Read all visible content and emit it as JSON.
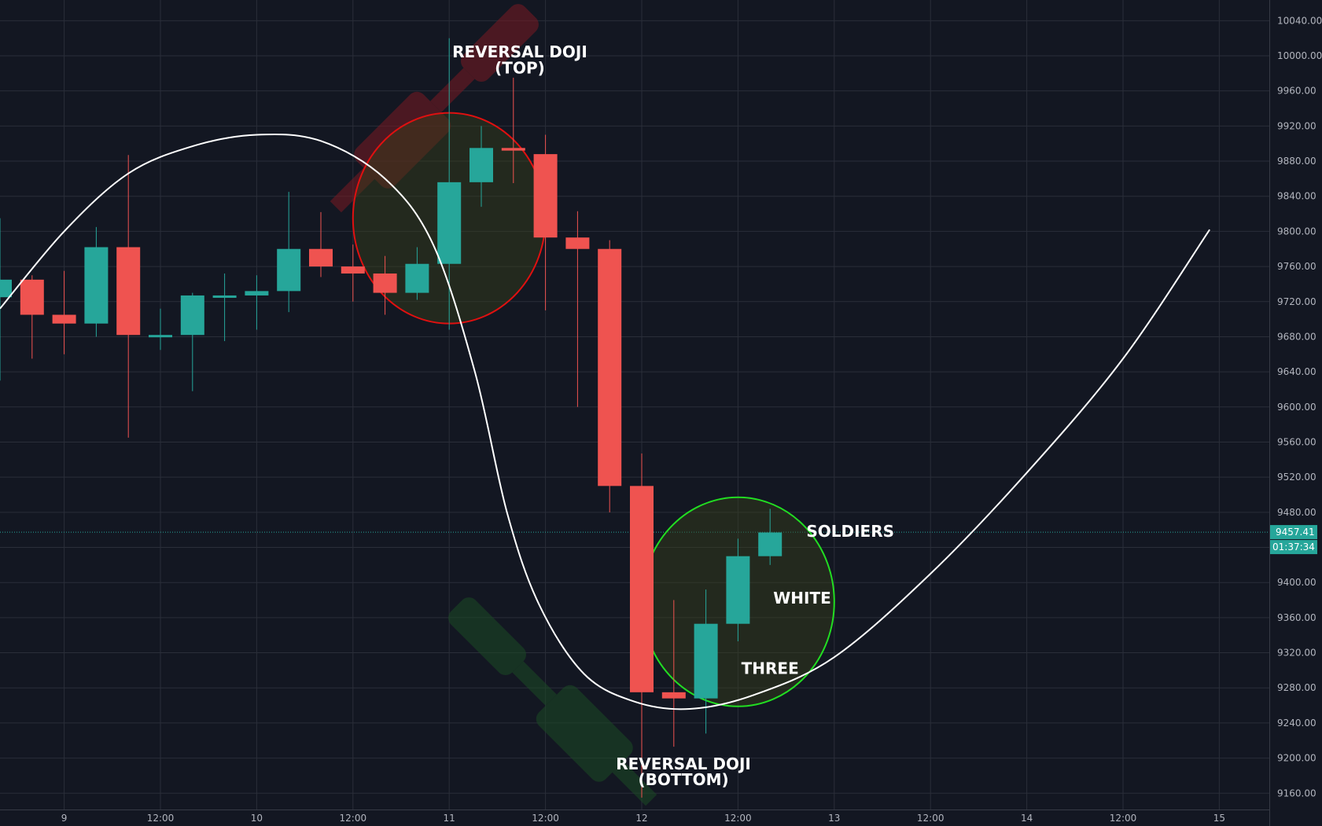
{
  "chart_data": {
    "type": "candlestick",
    "colors": {
      "background": "#131722",
      "grid": "#2a2e39",
      "up": "#26a69a",
      "down": "#ef5350",
      "curve": "#ffffff",
      "red_highlight": "#e01010",
      "green_highlight": "#22dd22",
      "price_line": "#26a69a"
    },
    "x_axis": {
      "ticks": [
        {
          "t": 2,
          "label": "9"
        },
        {
          "t": 5,
          "label": "12:00"
        },
        {
          "t": 8,
          "label": "10"
        },
        {
          "t": 11,
          "label": "12:00"
        },
        {
          "t": 14,
          "label": "11"
        },
        {
          "t": 17,
          "label": "12:00"
        },
        {
          "t": 20,
          "label": "12"
        },
        {
          "t": 23,
          "label": "12:00"
        },
        {
          "t": 26,
          "label": "13"
        },
        {
          "t": 29,
          "label": "12:00"
        },
        {
          "t": 32,
          "label": "14"
        },
        {
          "t": 35,
          "label": "12:00"
        },
        {
          "t": 38,
          "label": "15"
        }
      ]
    },
    "y_axis": {
      "ticks": [
        "10040.00",
        "10000.00",
        "9960.00",
        "9920.00",
        "9880.00",
        "9840.00",
        "9800.00",
        "9760.00",
        "9720.00",
        "9680.00",
        "9640.00",
        "9600.00",
        "9560.00",
        "9520.00",
        "9480.00",
        "9440.00",
        "9400.00",
        "9360.00",
        "9320.00",
        "9280.00",
        "9240.00",
        "9200.00",
        "9160.00"
      ]
    },
    "candles": [
      {
        "t": 0,
        "open": 9725,
        "high": 9815,
        "low": 9630,
        "close": 9745
      },
      {
        "t": 1,
        "open": 9745,
        "high": 9750,
        "low": 9655,
        "close": 9705
      },
      {
        "t": 2,
        "open": 9705,
        "high": 9755,
        "low": 9660,
        "close": 9695
      },
      {
        "t": 3,
        "open": 9695,
        "high": 9805,
        "low": 9680,
        "close": 9782
      },
      {
        "t": 4,
        "open": 9782,
        "high": 9887,
        "low": 9565,
        "close": 9682
      },
      {
        "t": 5,
        "open": 9682,
        "high": 9712,
        "low": 9665,
        "close": 9682
      },
      {
        "t": 6,
        "open": 9682,
        "high": 9730,
        "low": 9618,
        "close": 9727
      },
      {
        "t": 7,
        "open": 9727,
        "high": 9752,
        "low": 9675,
        "close": 9727
      },
      {
        "t": 8,
        "open": 9727,
        "high": 9750,
        "low": 9688,
        "close": 9732
      },
      {
        "t": 9,
        "open": 9732,
        "high": 9845,
        "low": 9708,
        "close": 9780
      },
      {
        "t": 10,
        "open": 9780,
        "high": 9822,
        "low": 9748,
        "close": 9760
      },
      {
        "t": 11,
        "open": 9760,
        "high": 9785,
        "low": 9720,
        "close": 9752
      },
      {
        "t": 12,
        "open": 9752,
        "high": 9772,
        "low": 9705,
        "close": 9730
      },
      {
        "t": 13,
        "open": 9730,
        "high": 9782,
        "low": 9722,
        "close": 9763
      },
      {
        "t": 14,
        "open": 9763,
        "high": 10020,
        "low": 9688,
        "close": 9856
      },
      {
        "t": 15,
        "open": 9856,
        "high": 9920,
        "low": 9828,
        "close": 9895
      },
      {
        "t": 16,
        "open": 9895,
        "high": 9975,
        "low": 9855,
        "close": 9892
      },
      {
        "t": 17,
        "open": 9888,
        "high": 9910,
        "low": 9710,
        "close": 9793
      },
      {
        "t": 18,
        "open": 9793,
        "high": 9823,
        "low": 9600,
        "close": 9780
      },
      {
        "t": 19,
        "open": 9780,
        "high": 9790,
        "low": 9480,
        "close": 9510
      },
      {
        "t": 20,
        "open": 9510,
        "high": 9547,
        "low": 9155,
        "close": 9275
      },
      {
        "t": 21,
        "open": 9275,
        "high": 9380,
        "low": 9213,
        "close": 9268
      },
      {
        "t": 22,
        "open": 9268,
        "high": 9392,
        "low": 9228,
        "close": 9353
      },
      {
        "t": 23,
        "open": 9353,
        "high": 9450,
        "low": 9333,
        "close": 9430
      },
      {
        "t": 24,
        "open": 9430,
        "high": 9484,
        "low": 9420,
        "close": 9457
      }
    ],
    "curve": [
      {
        "t": 0,
        "y": 9712
      },
      {
        "t": 2,
        "y": 9800
      },
      {
        "t": 4,
        "y": 9866
      },
      {
        "t": 6,
        "y": 9897
      },
      {
        "t": 8,
        "y": 9910
      },
      {
        "t": 10,
        "y": 9903
      },
      {
        "t": 12,
        "y": 9860
      },
      {
        "t": 13.5,
        "y": 9785
      },
      {
        "t": 14.8,
        "y": 9640
      },
      {
        "t": 15.8,
        "y": 9480
      },
      {
        "t": 16.8,
        "y": 9375
      },
      {
        "t": 18.2,
        "y": 9296
      },
      {
        "t": 19.8,
        "y": 9264
      },
      {
        "t": 21.5,
        "y": 9256
      },
      {
        "t": 23.5,
        "y": 9272
      },
      {
        "t": 26,
        "y": 9315
      },
      {
        "t": 29,
        "y": 9410
      },
      {
        "t": 32,
        "y": 9525
      },
      {
        "t": 35,
        "y": 9655
      },
      {
        "t": 37.7,
        "y": 9802
      }
    ],
    "current_price": 9457.41,
    "current_price_label": "9457.41",
    "countdown_label": "01:37:34",
    "annotations": [
      {
        "id": "reversal-top-line1",
        "text": "REVERSAL DOJI",
        "t": 16.2,
        "y": 9998
      },
      {
        "id": "reversal-top-line2",
        "text": "(TOP)",
        "t": 16.2,
        "y": 9980
      },
      {
        "id": "reversal-bottom-line1",
        "text": "REVERSAL DOJI",
        "t": 21.3,
        "y": 9187
      },
      {
        "id": "reversal-bottom-line2",
        "text": "(BOTTOM)",
        "t": 21.3,
        "y": 9169
      },
      {
        "id": "soldiers-label",
        "text": "SOLDIERS",
        "t": 26.5,
        "y": 9452
      },
      {
        "id": "white-label",
        "text": "WHITE",
        "t": 25,
        "y": 9376
      },
      {
        "id": "three-label",
        "text": "THREE",
        "t": 24,
        "y": 9296
      }
    ],
    "highlights": [
      {
        "id": "red-ellipse",
        "t": 14,
        "y": 9815,
        "rt": 3,
        "ry": 134,
        "color": "red"
      },
      {
        "id": "green-ellipse",
        "t": 23,
        "y": 9378,
        "rt": 3,
        "ry": 133,
        "color": "green"
      }
    ]
  }
}
